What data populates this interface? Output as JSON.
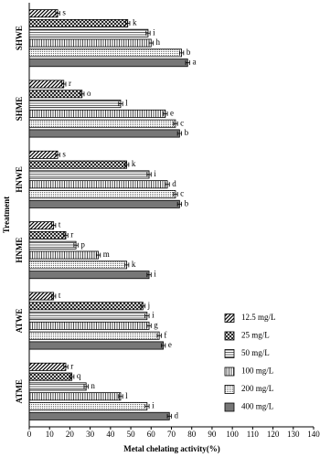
{
  "chart_data": {
    "type": "hbar",
    "xlabel": "Metal chelating activity(%)",
    "ylabel": "Treatment",
    "categories": [
      "SHWE",
      "SHME",
      "HNWE",
      "HNME",
      "ATWE",
      "ATME"
    ],
    "series": [
      {
        "name": "12.5 mg/L",
        "pattern": "diagonal",
        "color": "#000000",
        "values": [
          14,
          17,
          14,
          12,
          12,
          18
        ],
        "errors": [
          1,
          1,
          1,
          1,
          1,
          1
        ],
        "letters": [
          "s",
          "r",
          "s",
          "t",
          "t",
          "r"
        ]
      },
      {
        "name": "25 mg/L",
        "pattern": "crosshatch",
        "color": "#000000",
        "values": [
          48.5,
          26,
          48,
          18,
          56,
          21
        ],
        "errors": [
          1,
          1,
          1,
          1,
          1,
          1
        ],
        "letters": [
          "k",
          "o",
          "k",
          "r",
          "j",
          "q"
        ]
      },
      {
        "name": "50 mg/L",
        "pattern": "horizontal",
        "color": "#000000",
        "values": [
          58.5,
          45,
          59,
          23,
          58,
          28
        ],
        "errors": [
          1,
          1,
          1,
          1,
          1,
          1
        ],
        "letters": [
          "i",
          "l",
          "i",
          "p",
          "i",
          "n"
        ]
      },
      {
        "name": "100 mg/L",
        "pattern": "vertical",
        "color": "#000000",
        "values": [
          60,
          67,
          68,
          34,
          59,
          45
        ],
        "errors": [
          1,
          1,
          1,
          1,
          1,
          1
        ],
        "letters": [
          "h",
          "e",
          "d",
          "m",
          "g",
          "l"
        ]
      },
      {
        "name": "200 mg/L",
        "pattern": "dots",
        "color": "#666666",
        "values": [
          75,
          72,
          72,
          48,
          64,
          58
        ],
        "errors": [
          1,
          1,
          1,
          1,
          1,
          1
        ],
        "letters": [
          "b",
          "c",
          "c",
          "k",
          "f",
          "i"
        ]
      },
      {
        "name": "400 mg/L",
        "pattern": "solid",
        "color": "#777777",
        "values": [
          78,
          74,
          74,
          59,
          66,
          69
        ],
        "errors": [
          1,
          1,
          1,
          1,
          1,
          1
        ],
        "letters": [
          "a",
          "b",
          "b",
          "i",
          "e",
          "d"
        ]
      }
    ],
    "xlim": [
      0,
      140
    ],
    "xticks": [
      0,
      10,
      20,
      30,
      40,
      50,
      60,
      70,
      80,
      90,
      100,
      110,
      120,
      130,
      140
    ],
    "legend": "lower right"
  }
}
